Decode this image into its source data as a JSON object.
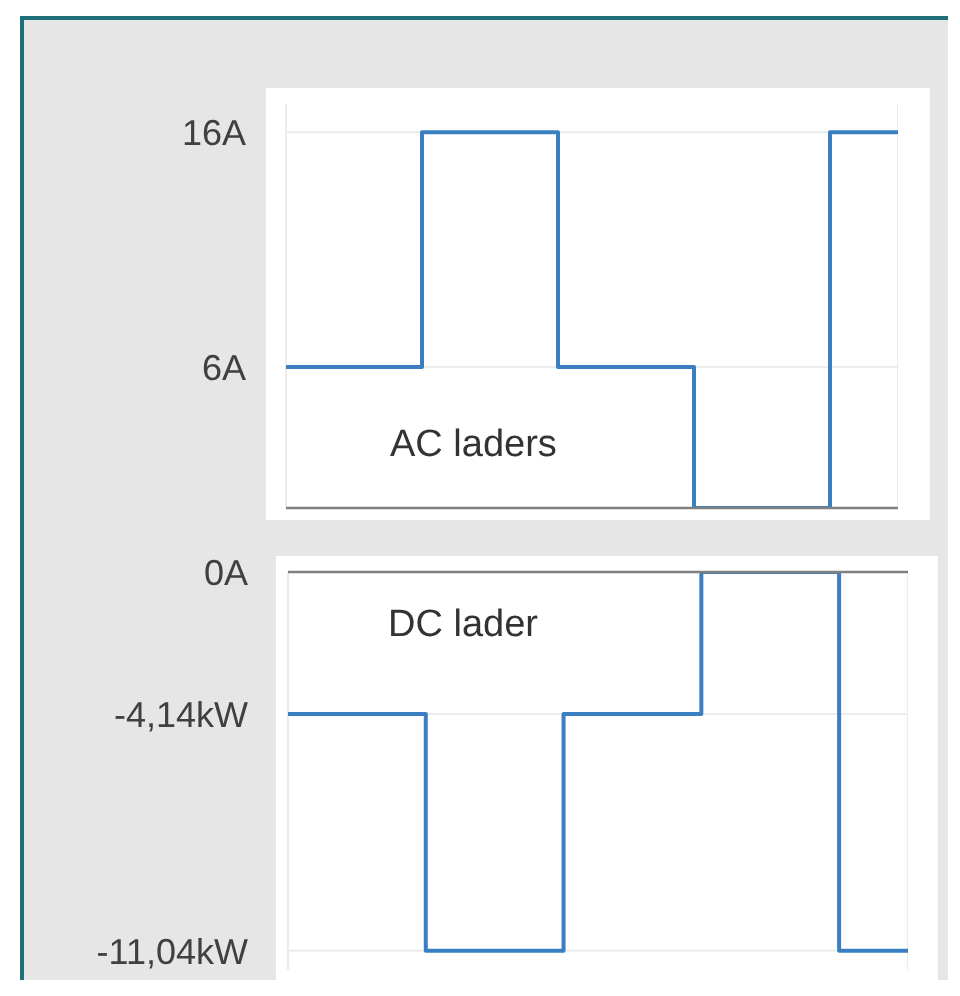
{
  "chart_data": [
    {
      "type": "step",
      "categories": [
        null,
        null,
        null,
        null,
        null,
        null,
        null,
        null,
        null,
        null
      ],
      "values": [
        6,
        6,
        16,
        16,
        6,
        6,
        0,
        0,
        16,
        16
      ],
      "color": "#3a7fc1",
      "ylim": [
        0,
        17.2
      ],
      "yticks": [
        {
          "value": 6,
          "label": "6A"
        },
        {
          "value": 16,
          "label": "16A"
        }
      ],
      "tick_labels": "y",
      "grid": true,
      "annotations": [
        "AC laders"
      ]
    },
    {
      "type": "step",
      "categories": [
        null,
        null,
        null,
        null,
        null,
        null,
        null,
        null,
        null,
        null
      ],
      "values": [
        -4.14,
        -4.14,
        -11.04,
        -11.04,
        -4.14,
        -4.14,
        0,
        0,
        -11.04,
        -11.04
      ],
      "color": "#3a7fc1",
      "ylim": [
        -11.6,
        0
      ],
      "yticks": [
        {
          "value": -11.04,
          "label": "-11,04kW"
        },
        {
          "value": -4.14,
          "label": "-4,14kW"
        },
        {
          "value": 0,
          "label": "0A"
        }
      ],
      "tick_labels": "y",
      "grid": true,
      "annotations": [
        "DC lader"
      ]
    }
  ]
}
